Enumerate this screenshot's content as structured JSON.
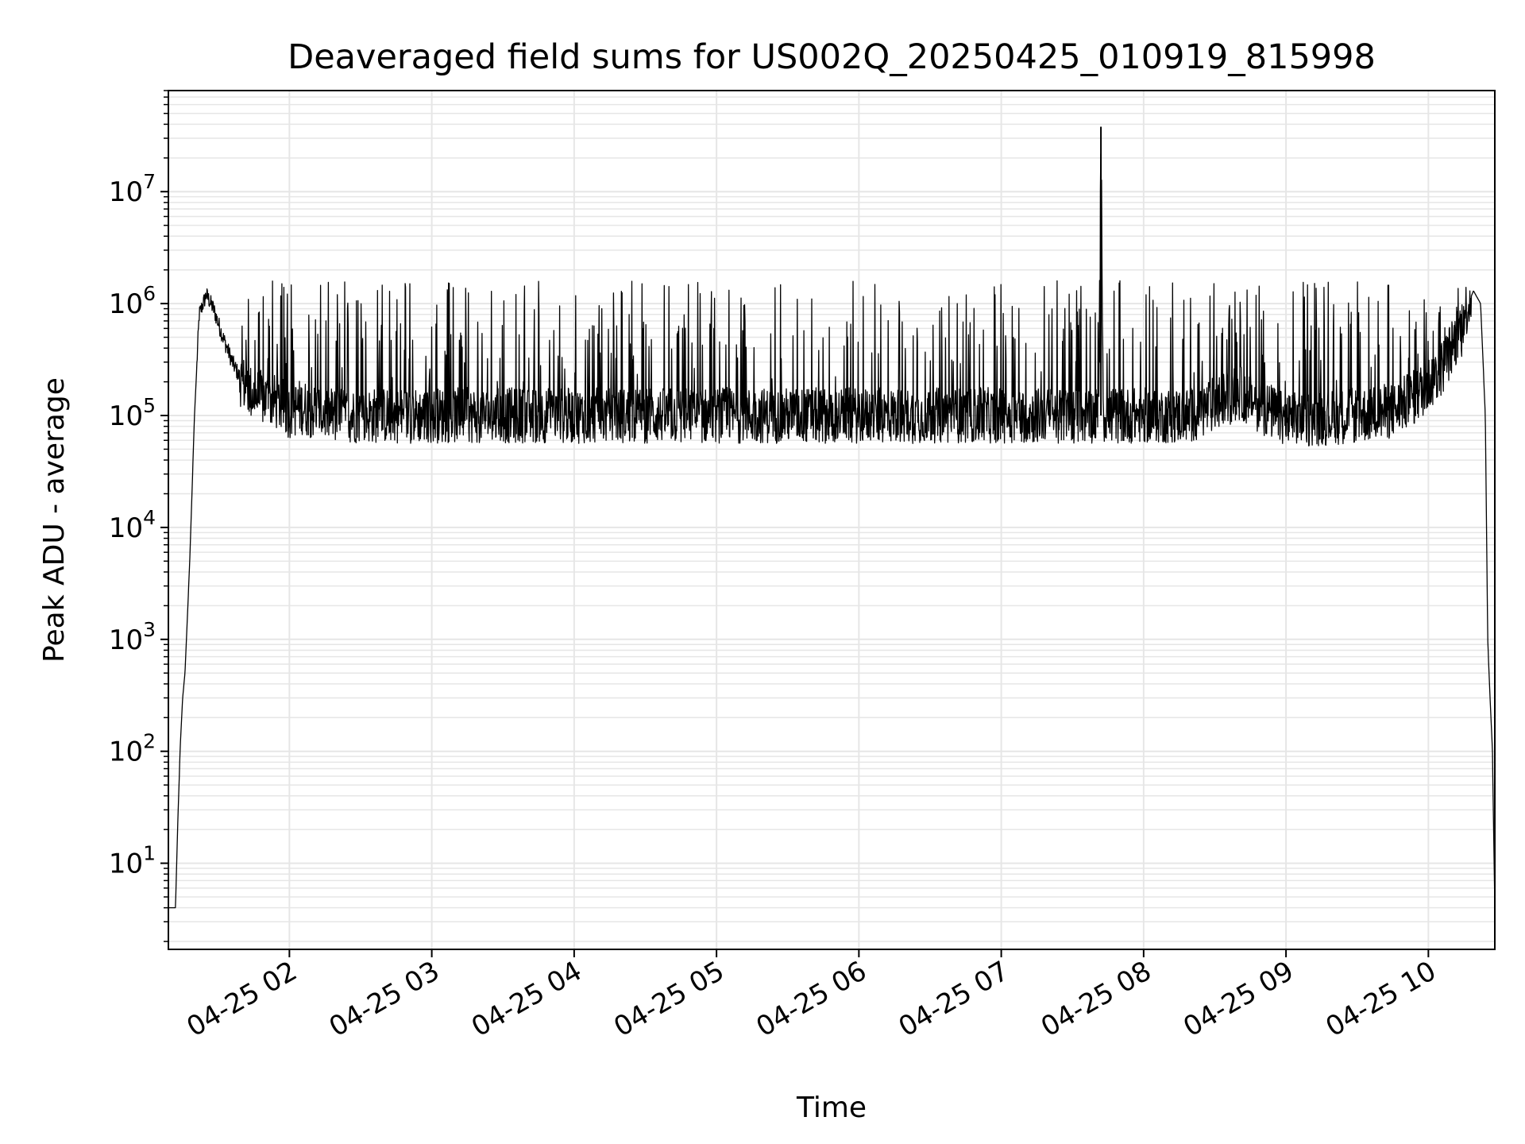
{
  "chart_data": {
    "type": "line",
    "title": "Deaveraged field sums for US002Q_20250425_010919_815998",
    "xlabel": "Time",
    "ylabel": "Peak ADU - average",
    "y_scale": "log",
    "ylim": [
      1.7,
      80000000
    ],
    "xlim": [
      "2025-04-25 01:09",
      "2025-04-25 10:28"
    ],
    "grid": {
      "major": true,
      "minor_y": true,
      "color": "#e6e6e6"
    },
    "line_color": "#000000",
    "x_ticks": [
      {
        "value": "2025-04-25 02:00",
        "label": "04-25 02"
      },
      {
        "value": "2025-04-25 03:00",
        "label": "04-25 03"
      },
      {
        "value": "2025-04-25 04:00",
        "label": "04-25 04"
      },
      {
        "value": "2025-04-25 05:00",
        "label": "04-25 05"
      },
      {
        "value": "2025-04-25 06:00",
        "label": "04-25 06"
      },
      {
        "value": "2025-04-25 07:00",
        "label": "04-25 07"
      },
      {
        "value": "2025-04-25 08:00",
        "label": "04-25 08"
      },
      {
        "value": "2025-04-25 09:00",
        "label": "04-25 09"
      },
      {
        "value": "2025-04-25 10:00",
        "label": "04-25 10"
      }
    ],
    "y_ticks": [
      {
        "value": 10,
        "base": "10",
        "exp": "1"
      },
      {
        "value": 100,
        "base": "10",
        "exp": "2"
      },
      {
        "value": 1000,
        "base": "10",
        "exp": "3"
      },
      {
        "value": 10000,
        "base": "10",
        "exp": "4"
      },
      {
        "value": 100000,
        "base": "10",
        "exp": "5"
      },
      {
        "value": 1000000,
        "base": "10",
        "exp": "6"
      },
      {
        "value": 10000000,
        "base": "10",
        "exp": "7"
      }
    ],
    "series": [
      {
        "x": [
          "2025-04-25 01:09",
          "2025-04-25 01:10",
          "2025-04-25 01:12",
          "2025-04-25 01:13",
          "2025-04-25 01:14",
          "2025-04-25 01:15",
          "2025-04-25 01:16",
          "2025-04-25 01:18",
          "2025-04-25 01:20",
          "2025-04-25 01:22",
          "2025-04-25 01:25",
          "2025-04-25 01:28",
          "2025-04-25 01:32",
          "2025-04-25 01:36",
          "2025-04-25 01:40",
          "2025-04-25 01:45",
          "2025-04-25 01:50",
          "2025-04-25 01:55",
          "2025-04-25 02:00",
          "2025-04-25 02:05",
          "2025-04-25 02:10",
          "2025-04-25 02:20",
          "2025-04-25 02:30",
          "2025-04-25 02:45",
          "2025-04-25 03:00",
          "2025-04-25 03:30",
          "2025-04-25 04:00",
          "2025-04-25 04:30",
          "2025-04-25 05:00",
          "2025-04-25 05:30",
          "2025-04-25 06:00",
          "2025-04-25 06:30",
          "2025-04-25 07:00",
          "2025-04-25 07:30",
          "2025-04-25 07:41",
          "2025-04-25 07:42",
          "2025-04-25 07:43",
          "2025-04-25 08:00",
          "2025-04-25 08:20",
          "2025-04-25 08:40",
          "2025-04-25 09:00",
          "2025-04-25 09:30",
          "2025-04-25 09:45",
          "2025-04-25 09:55",
          "2025-04-25 10:05",
          "2025-04-25 10:12",
          "2025-04-25 10:16",
          "2025-04-25 10:19",
          "2025-04-25 10:22",
          "2025-04-25 10:24",
          "2025-04-25 10:25",
          "2025-04-25 10:26",
          "2025-04-25 10:27",
          "2025-04-25 10:28"
        ],
        "y": [
          4,
          4,
          4,
          25,
          110,
          300,
          500,
          5000,
          100000,
          800000,
          1200000,
          900000,
          500000,
          300000,
          200000,
          150000,
          140000,
          130000,
          110000,
          120000,
          110000,
          100000,
          100000,
          100000,
          100000,
          100000,
          100000,
          100000,
          100000,
          100000,
          100000,
          100000,
          100000,
          100000,
          100000,
          38000000,
          100000,
          100000,
          100000,
          160000,
          90000,
          100000,
          110000,
          150000,
          250000,
          500000,
          900000,
          1300000,
          1000000,
          100000,
          1000,
          300,
          100,
          4
        ]
      }
    ]
  }
}
